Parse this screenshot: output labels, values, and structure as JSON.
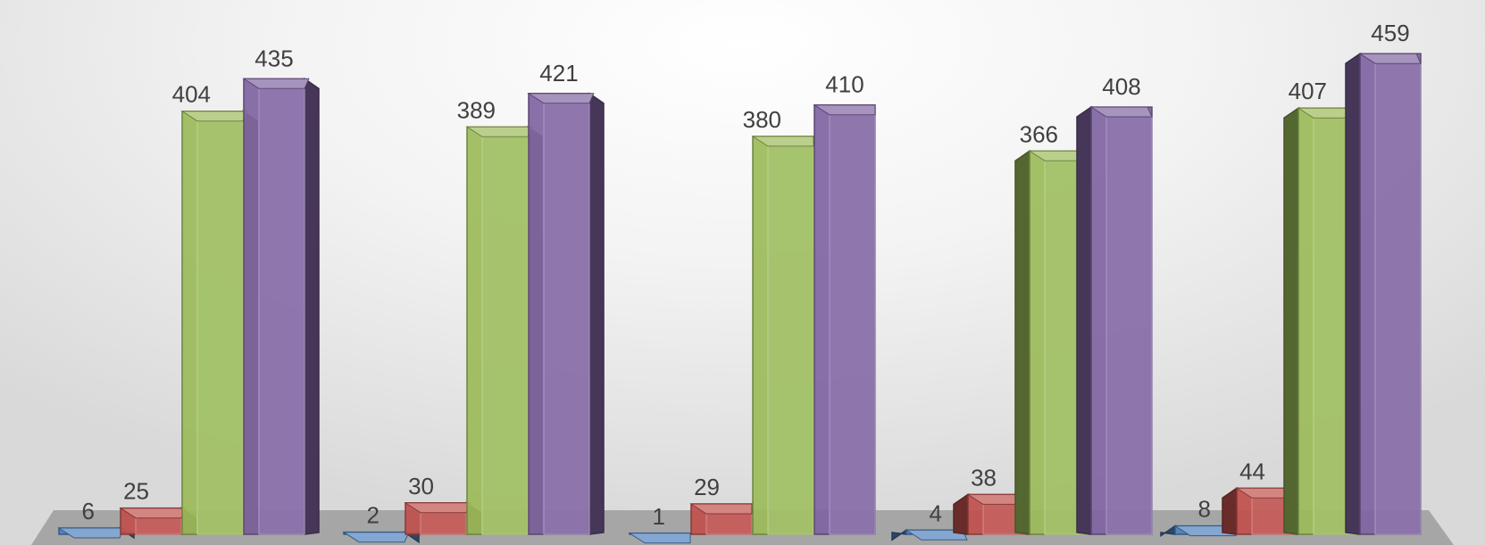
{
  "chart_data": {
    "type": "bar",
    "variant": "3d-clustered-column",
    "title": "",
    "xlabel": "",
    "ylabel": "",
    "categories": [
      "",
      "",
      "",
      "",
      ""
    ],
    "series": [
      {
        "values": [
          6,
          2,
          1,
          4,
          8
        ],
        "color": "#4F81BD"
      },
      {
        "values": [
          25,
          30,
          29,
          38,
          44
        ],
        "color": "#C0504D"
      },
      {
        "values": [
          404,
          389,
          380,
          366,
          407
        ],
        "color": "#9BBB59"
      },
      {
        "values": [
          435,
          421,
          410,
          408,
          459
        ],
        "color": "#8064A2"
      }
    ],
    "ylim": [
      0,
      460
    ],
    "grid": false,
    "legend": "none",
    "data_labels": true,
    "background": {
      "center": "#ffffff",
      "edge": "#d9d9d9"
    },
    "floor_color": "#a6a6a6"
  }
}
